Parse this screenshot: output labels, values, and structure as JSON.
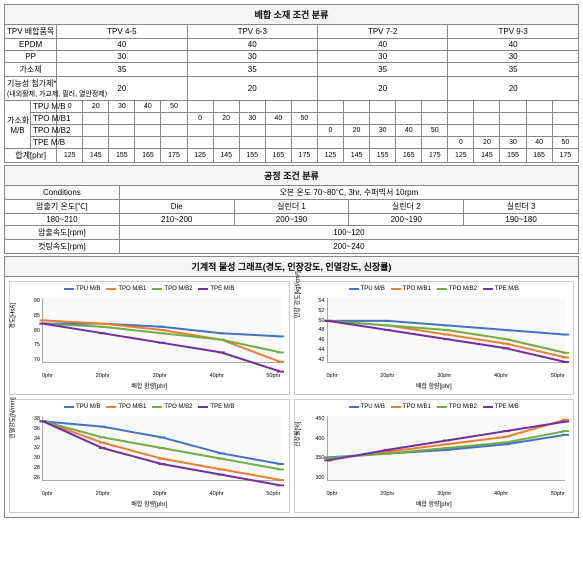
{
  "sections": {
    "material_header": "배합 소재 조건 분류",
    "process_header": "공정 조건 분류",
    "mech_header": "기계적 물성 그래프(경도, 인장강도, 인열강도, 신장률)"
  },
  "material": {
    "col_item": "TPV 배합품목",
    "tpv_cols": [
      "TPV 4-5",
      "TPV 6-3",
      "TPV 7-2",
      "TPV 9-3"
    ],
    "rows_simple": [
      {
        "name": "EPDM",
        "vals": [
          "40",
          "40",
          "40",
          "40"
        ]
      },
      {
        "name": "PP",
        "vals": [
          "30",
          "30",
          "30",
          "30"
        ]
      },
      {
        "name": "가소제",
        "vals": [
          "35",
          "35",
          "35",
          "35"
        ]
      },
      {
        "name": "기능성 첨가제*",
        "sub": "(내외활제, 가교제, 필러, 열안정제)",
        "vals": [
          "20",
          "20",
          "20",
          "20"
        ]
      }
    ],
    "mb_group": "가소화\nM/B",
    "mb_labels": [
      "TPU M/B",
      "TPO M/B1",
      "TPO M/B2",
      "TPE M/B"
    ],
    "mb_steps": [
      "0",
      "20",
      "30",
      "40",
      "50"
    ],
    "sum_label": "합계[phr]",
    "sum_vals": [
      "125",
      "145",
      "155",
      "165",
      "175",
      "125",
      "145",
      "155",
      "165",
      "175",
      "125",
      "145",
      "155",
      "165",
      "175",
      "125",
      "145",
      "155",
      "165",
      "175"
    ]
  },
  "process": {
    "cond_label": "Conditions",
    "cond_text": "오븐 온도 70~80℃, 3hr,   수퍼믹서 10rpm",
    "rows": [
      {
        "l1": "압출기 온도[℃]",
        "l2": "180~210",
        "cells": [
          "Die",
          "실린더 1",
          "실린더 2",
          "실린더 3"
        ],
        "cells2": [
          "210~200",
          "200~190",
          "200~190",
          "190~180"
        ]
      },
      {
        "label": "압출속도[rpm]",
        "val": "100~120"
      },
      {
        "label": "컷팅속도[rpm]",
        "val": "200~240"
      }
    ]
  },
  "charts": {
    "x_label": "배합 함량[phr]",
    "x_ticks": [
      "0phr",
      "20phr",
      "30phr",
      "40phr",
      "50phr"
    ],
    "series_labels": [
      "TPU M/B",
      "TPO M/B1",
      "TPO M/B2",
      "TPE M/B"
    ],
    "series_colors": [
      "#4472c4",
      "#ed7d31",
      "#70ad47",
      "#7030a0"
    ],
    "list": [
      {
        "y_label": "경도[HsA]",
        "ylim": [
          70,
          90
        ],
        "yticks": [
          70,
          75,
          80,
          85,
          90
        ],
        "data": [
          [
            82,
            82,
            81,
            79,
            78
          ],
          [
            83,
            82,
            80,
            77,
            70
          ],
          [
            82,
            81,
            79,
            77,
            73
          ],
          [
            82,
            79,
            76,
            73,
            67
          ]
        ]
      },
      {
        "y_label": "인장 강도[kgf/cm²]",
        "ylim": [
          42,
          56
        ],
        "yticks": [
          42,
          44,
          46,
          48,
          50,
          52,
          54
        ],
        "data": [
          [
            51,
            51,
            50,
            49,
            48
          ],
          [
            51,
            50,
            48,
            46,
            43
          ],
          [
            51,
            50,
            49,
            47,
            44
          ],
          [
            51,
            49,
            47,
            45,
            42
          ]
        ]
      },
      {
        "y_label": "인열강도[N/mm]",
        "ylim": [
          26,
          38
        ],
        "yticks": [
          26,
          28,
          30,
          32,
          34,
          36,
          38
        ],
        "data": [
          [
            37,
            36,
            34,
            31,
            29
          ],
          [
            37,
            33,
            30,
            28,
            26
          ],
          [
            37,
            34,
            32,
            30,
            28
          ],
          [
            37,
            32,
            29,
            27,
            25
          ]
        ]
      },
      {
        "y_label": "신장률[%]",
        "ylim": [
          300,
          470
        ],
        "yticks": [
          300,
          350,
          400,
          450
        ],
        "data": [
          [
            360,
            370,
            380,
            395,
            420
          ],
          [
            355,
            375,
            395,
            415,
            460
          ],
          [
            358,
            370,
            385,
            400,
            430
          ],
          [
            352,
            380,
            405,
            430,
            455
          ]
        ]
      }
    ]
  }
}
